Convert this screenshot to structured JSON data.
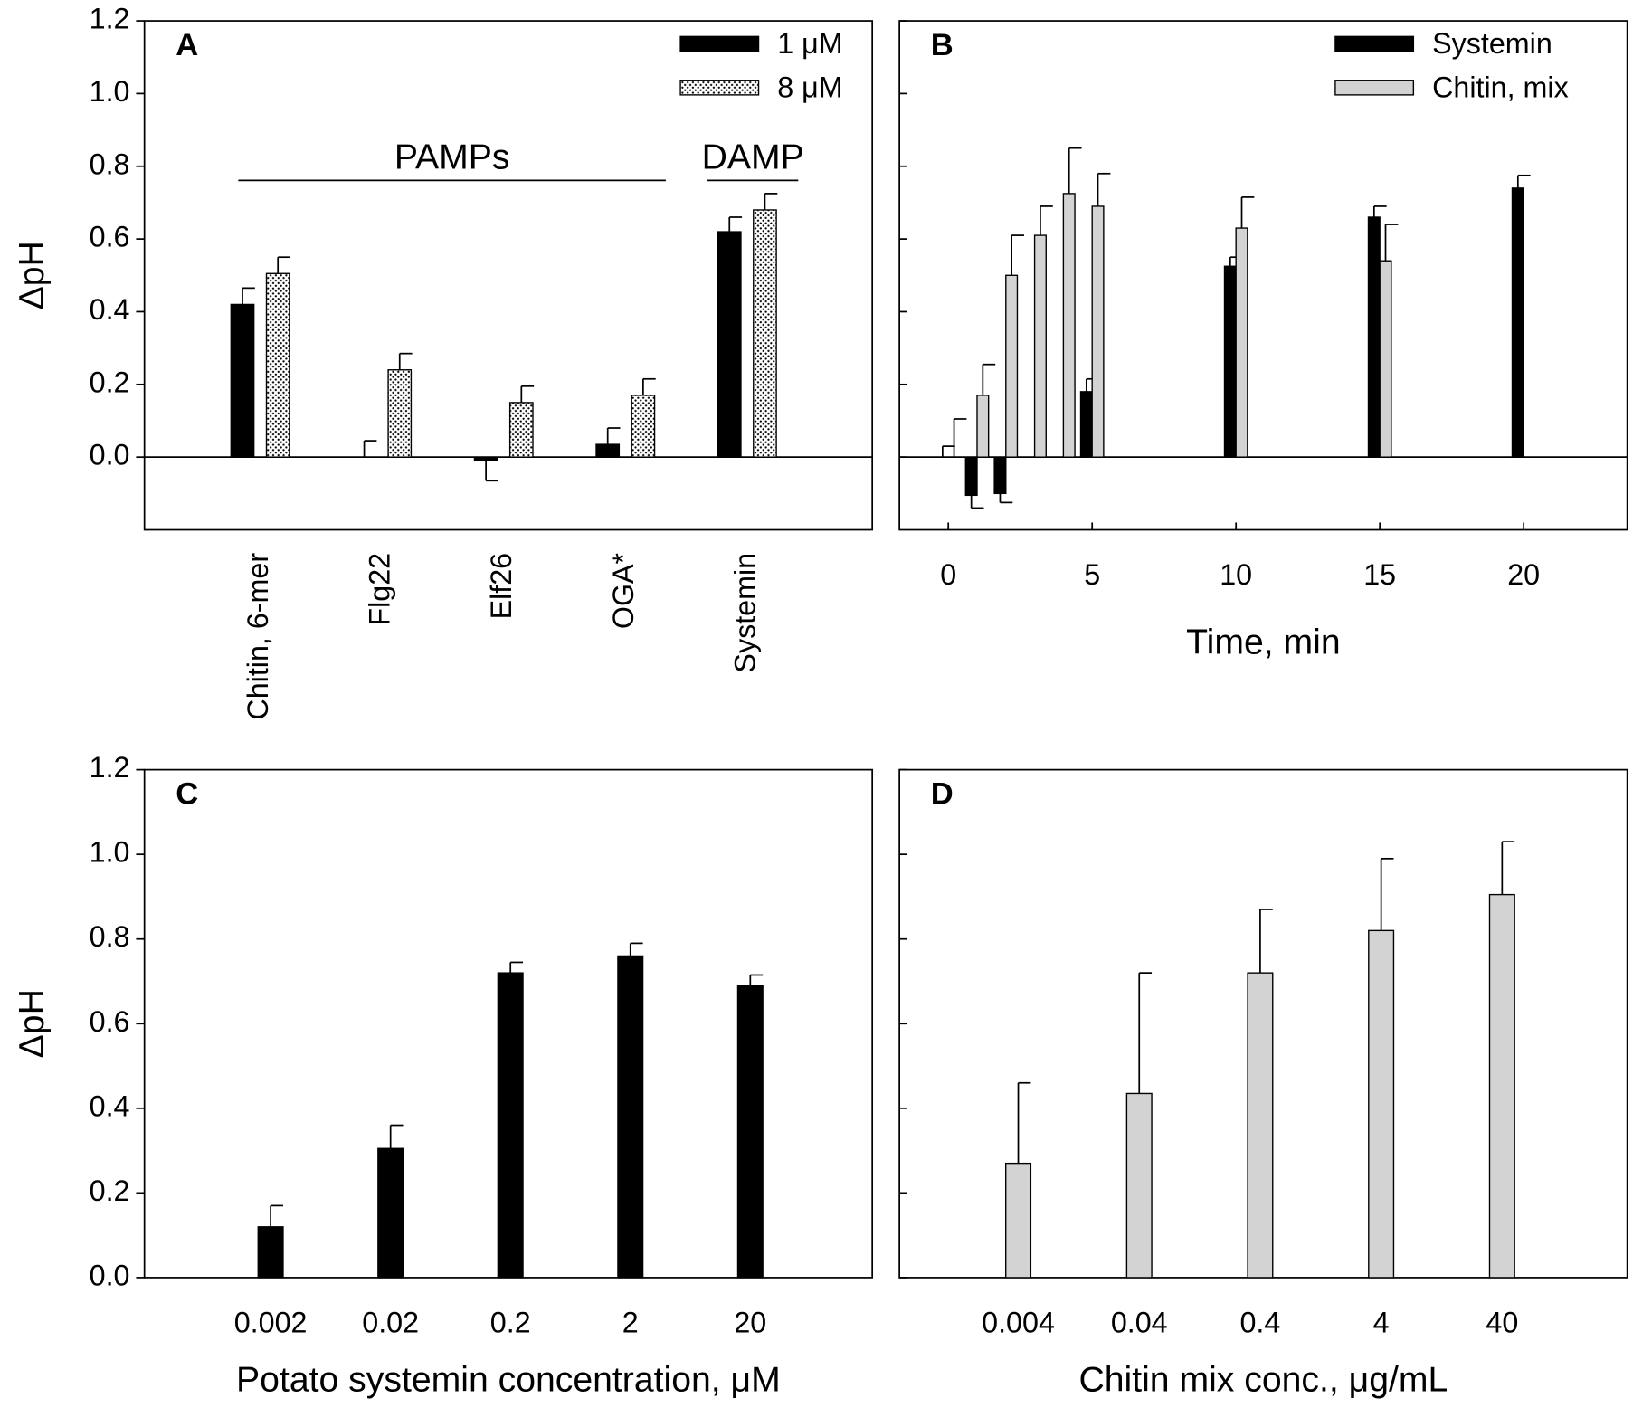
{
  "chart_data": [
    {
      "type": "bar",
      "panel": "A",
      "ylabel": "ΔpH",
      "categories": [
        "Chitin, 6-mer",
        "Flg22",
        "Elf26",
        "OGA*",
        "Systemin"
      ],
      "series": [
        {
          "name": "1 μM",
          "color": "#000000",
          "values": [
            0.42,
            0.0,
            -0.01,
            0.035,
            0.62
          ],
          "errors": [
            0.045,
            0.045,
            0.055,
            0.045,
            0.04
          ]
        },
        {
          "name": "8 μM",
          "color": "#ffffff",
          "hatch": "dots",
          "values": [
            0.505,
            0.24,
            0.15,
            0.17,
            0.68
          ],
          "errors": [
            0.045,
            0.045,
            0.045,
            0.045,
            0.045
          ]
        }
      ],
      "annotations": [
        "PAMPs",
        "DAMP"
      ],
      "ylim": [
        -0.2,
        1.2
      ],
      "yticks": [
        {
          "value": 0,
          "label": "0.0"
        },
        0.2,
        0.4,
        0.6,
        0.8,
        {
          "value": 1,
          "label": "1.0"
        },
        1.2
      ],
      "legend": "upper right"
    },
    {
      "type": "bar",
      "panel": "B",
      "xlabel": "Time, min",
      "x": [
        0,
        1,
        2,
        3,
        4,
        5,
        10,
        15,
        20
      ],
      "series": [
        {
          "name": "Systemin",
          "color": "#000000",
          "values": [
            0.0,
            -0.105,
            -0.1,
            null,
            null,
            0.18,
            0.525,
            0.66,
            0.74
          ],
          "errors": [
            0.03,
            0.035,
            0.025,
            null,
            null,
            0.035,
            0.025,
            0.03,
            0.035
          ]
        },
        {
          "name": "Chitin, mix",
          "color": "#d3d3d3",
          "values": [
            0.0,
            0.17,
            0.5,
            0.61,
            0.725,
            0.69,
            0.63,
            0.54,
            null
          ],
          "errors": [
            0.105,
            0.085,
            0.11,
            0.08,
            0.125,
            0.09,
            0.085,
            0.1,
            null
          ]
        }
      ],
      "xlim": [
        -1.7,
        23.6
      ],
      "xticks": [
        0,
        5,
        10,
        15,
        20
      ],
      "ylim": [
        -0.2,
        1.2
      ],
      "yticks": [
        0,
        0.2,
        0.4,
        0.6,
        0.8,
        1,
        1.2
      ],
      "legend": "upper right"
    },
    {
      "type": "bar",
      "panel": "C",
      "ylabel": "ΔpH",
      "xlabel": "Potato systemin concentration, μM",
      "categories": [
        "0.002",
        "0.02",
        "0.2",
        "2",
        "20"
      ],
      "series": [
        {
          "color": "#000000",
          "values": [
            0.12,
            0.305,
            0.72,
            0.76,
            0.69
          ],
          "errors": [
            0.05,
            0.055,
            0.025,
            0.03,
            0.025
          ]
        }
      ],
      "ylim": [
        0,
        1.2
      ],
      "yticks": [
        {
          "value": 0,
          "label": "0.0"
        },
        0.2,
        0.4,
        0.6,
        0.8,
        {
          "value": 1,
          "label": "1.0"
        },
        1.2
      ]
    },
    {
      "type": "bar",
      "panel": "D",
      "xlabel": "Chitin mix conc., μg/mL",
      "categories": [
        "0.004",
        "0.04",
        "0.4",
        "4",
        "40"
      ],
      "series": [
        {
          "color": "#d3d3d3",
          "values": [
            0.27,
            0.435,
            0.72,
            0.82,
            0.905
          ],
          "errors": [
            0.19,
            0.285,
            0.15,
            0.17,
            0.125
          ]
        }
      ],
      "ylim": [
        0,
        1.2
      ],
      "yticks": [
        0,
        0.2,
        0.4,
        0.6,
        0.8,
        1,
        1.2
      ]
    }
  ]
}
